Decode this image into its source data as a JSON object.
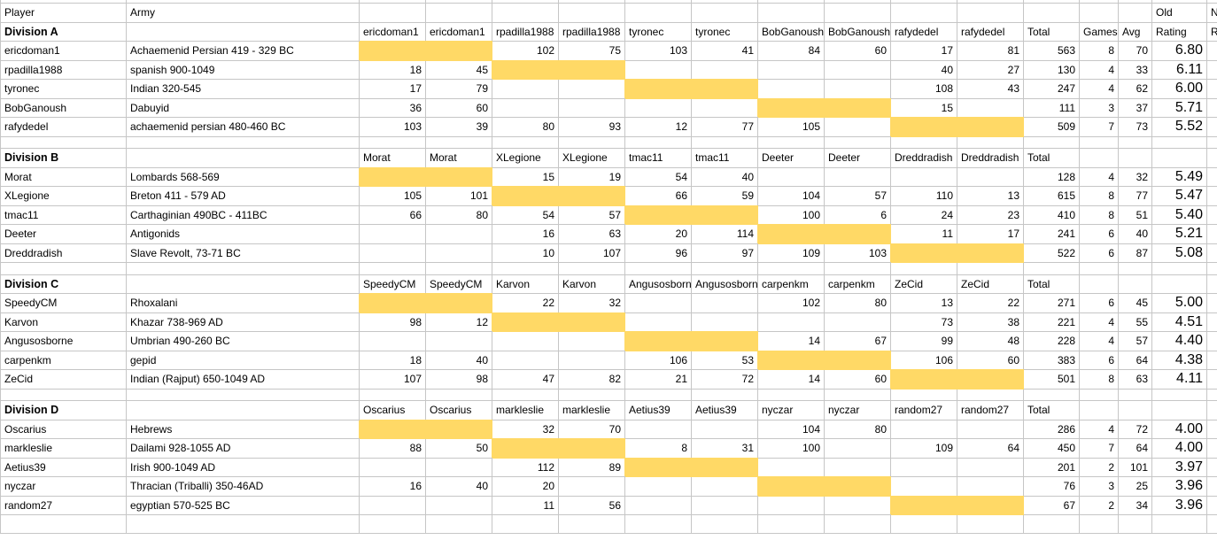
{
  "colors": {
    "highlight": "#ffd966",
    "gridline": "#c6c6c6",
    "text": "#000000",
    "background": "#ffffff"
  },
  "top_header": {
    "player": "Player",
    "army": "Army",
    "old": "Old",
    "new_fragment": "N"
  },
  "column_labels": {
    "total": "Total",
    "games": "Games",
    "avg": "Avg",
    "rating": "Rating",
    "new_rating_fragment": "R"
  },
  "divisions": [
    {
      "name": "Division A",
      "opponent_columns": [
        "ericdoman1",
        "ericdoman1",
        "rpadilla1988",
        "rpadilla1988",
        "tyronec",
        "tyronec",
        "BobGanoush",
        "BobGanoush",
        "rafydedel",
        "rafydedel"
      ],
      "players": [
        {
          "name": "ericdoman1",
          "army": "Achaemenid Persian 419 - 329 BC",
          "scores": [
            "",
            "",
            "102",
            "75",
            "103",
            "41",
            "84",
            "60",
            "17",
            "81"
          ],
          "total": 563,
          "games": 8,
          "avg": 70,
          "old_rating": "6.80"
        },
        {
          "name": "rpadilla1988",
          "army": "spanish 900-1049",
          "scores": [
            "18",
            "45",
            "",
            "",
            "",
            "",
            "",
            "",
            "40",
            "27"
          ],
          "total": 130,
          "games": 4,
          "avg": 33,
          "old_rating": "6.11"
        },
        {
          "name": "tyronec",
          "army": "Indian 320-545",
          "scores": [
            "17",
            "79",
            "",
            "",
            "",
            "",
            "",
            "",
            "108",
            "43"
          ],
          "total": 247,
          "games": 4,
          "avg": 62,
          "old_rating": "6.00"
        },
        {
          "name": "BobGanoush",
          "army": "Dabuyid",
          "scores": [
            "36",
            "60",
            "",
            "",
            "",
            "",
            "",
            "",
            "15",
            ""
          ],
          "total": 111,
          "games": 3,
          "avg": 37,
          "old_rating": "5.71"
        },
        {
          "name": "rafydedel",
          "army": "achaemenid persian 480-460 BC",
          "scores": [
            "103",
            "39",
            "80",
            "93",
            "12",
            "77",
            "105",
            "",
            "",
            ""
          ],
          "total": 509,
          "games": 7,
          "avg": 73,
          "old_rating": "5.52"
        }
      ]
    },
    {
      "name": "Division B",
      "opponent_columns": [
        "Morat",
        "Morat",
        "XLegione",
        "XLegione",
        "tmac11",
        "tmac11",
        "Deeter",
        "Deeter",
        "Dreddradish",
        "Dreddradish"
      ],
      "players": [
        {
          "name": "Morat",
          "army": "Lombards 568-569",
          "scores": [
            "",
            "",
            "15",
            "19",
            "54",
            "40",
            "",
            "",
            "",
            ""
          ],
          "total": 128,
          "games": 4,
          "avg": 32,
          "old_rating": "5.49"
        },
        {
          "name": "XLegione",
          "army": "Breton 411 - 579 AD",
          "scores": [
            "105",
            "101",
            "",
            "",
            "66",
            "59",
            "104",
            "57",
            "110",
            "13"
          ],
          "total": 615,
          "games": 8,
          "avg": 77,
          "old_rating": "5.47"
        },
        {
          "name": "tmac11",
          "army": "Carthaginian 490BC - 411BC",
          "scores": [
            "66",
            "80",
            "54",
            "57",
            "",
            "",
            "100",
            "6",
            "24",
            "23"
          ],
          "total": 410,
          "games": 8,
          "avg": 51,
          "old_rating": "5.40"
        },
        {
          "name": "Deeter",
          "army": "Antigonids",
          "scores": [
            "",
            "",
            "16",
            "63",
            "20",
            "114",
            "",
            "",
            "11",
            "17"
          ],
          "total": 241,
          "games": 6,
          "avg": 40,
          "old_rating": "5.21"
        },
        {
          "name": "Dreddradish",
          "army": "Slave Revolt, 73-71 BC",
          "scores": [
            "",
            "",
            "10",
            "107",
            "96",
            "97",
            "109",
            "103",
            "",
            ""
          ],
          "total": 522,
          "games": 6,
          "avg": 87,
          "old_rating": "5.08"
        }
      ]
    },
    {
      "name": "Division C",
      "opponent_columns": [
        "SpeedyCM",
        "SpeedyCM",
        "Karvon",
        "Karvon",
        "Angusosborne",
        "Angusosborne",
        "carpenkm",
        "carpenkm",
        "ZeCid",
        "ZeCid"
      ],
      "players": [
        {
          "name": "SpeedyCM",
          "army": "Rhoxalani",
          "scores": [
            "",
            "",
            "22",
            "32",
            "",
            "",
            "102",
            "80",
            "13",
            "22"
          ],
          "total": 271,
          "games": 6,
          "avg": 45,
          "old_rating": "5.00"
        },
        {
          "name": "Karvon",
          "army": "Khazar 738-969 AD",
          "scores": [
            "98",
            "12",
            "",
            "",
            "",
            "",
            "",
            "",
            "73",
            "38"
          ],
          "total": 221,
          "games": 4,
          "avg": 55,
          "old_rating": "4.51"
        },
        {
          "name": "Angusosborne",
          "army": "Umbrian 490-260 BC",
          "scores": [
            "",
            "",
            "",
            "",
            "",
            "",
            "14",
            "67",
            "99",
            "48"
          ],
          "total": 228,
          "games": 4,
          "avg": 57,
          "old_rating": "4.40"
        },
        {
          "name": "carpenkm",
          "army": "gepid",
          "scores": [
            "18",
            "40",
            "",
            "",
            "106",
            "53",
            "",
            "",
            "106",
            "60"
          ],
          "total": 383,
          "games": 6,
          "avg": 64,
          "old_rating": "4.38"
        },
        {
          "name": "ZeCid",
          "army": "Indian (Rajput) 650-1049 AD",
          "scores": [
            "107",
            "98",
            "47",
            "82",
            "21",
            "72",
            "14",
            "60",
            "",
            ""
          ],
          "total": 501,
          "games": 8,
          "avg": 63,
          "old_rating": "4.11"
        }
      ]
    },
    {
      "name": "Division D",
      "opponent_columns": [
        "Oscarius",
        "Oscarius",
        "markleslie",
        "markleslie",
        "Aetius39",
        "Aetius39",
        "nyczar",
        "nyczar",
        "random27",
        "random27"
      ],
      "players": [
        {
          "name": "Oscarius",
          "army": "Hebrews",
          "scores": [
            "",
            "",
            "32",
            "70",
            "",
            "",
            "104",
            "80",
            "",
            ""
          ],
          "total": 286,
          "games": 4,
          "avg": 72,
          "old_rating": "4.00"
        },
        {
          "name": "markleslie",
          "army": "Dailami 928-1055 AD",
          "scores": [
            "88",
            "50",
            "",
            "",
            "8",
            "31",
            "100",
            "",
            "109",
            "64"
          ],
          "total": 450,
          "games": 7,
          "avg": 64,
          "old_rating": "4.00"
        },
        {
          "name": "Aetius39",
          "army": "Irish 900-1049 AD",
          "scores": [
            "",
            "",
            "112",
            "89",
            "",
            "",
            "",
            "",
            "",
            ""
          ],
          "total": 201,
          "games": 2,
          "avg": 101,
          "old_rating": "3.97"
        },
        {
          "name": "nyczar",
          "army": "Thracian (Triballi) 350-46AD",
          "scores": [
            "16",
            "40",
            "20",
            "",
            "",
            "",
            "",
            "",
            "",
            ""
          ],
          "total": 76,
          "games": 3,
          "avg": 25,
          "old_rating": "3.96"
        },
        {
          "name": "random27",
          "army": "egyptian 570-525 BC",
          "scores": [
            "",
            "",
            "11",
            "56",
            "",
            "",
            "",
            "",
            "",
            ""
          ],
          "total": 67,
          "games": 2,
          "avg": 34,
          "old_rating": "3.96"
        }
      ]
    }
  ]
}
